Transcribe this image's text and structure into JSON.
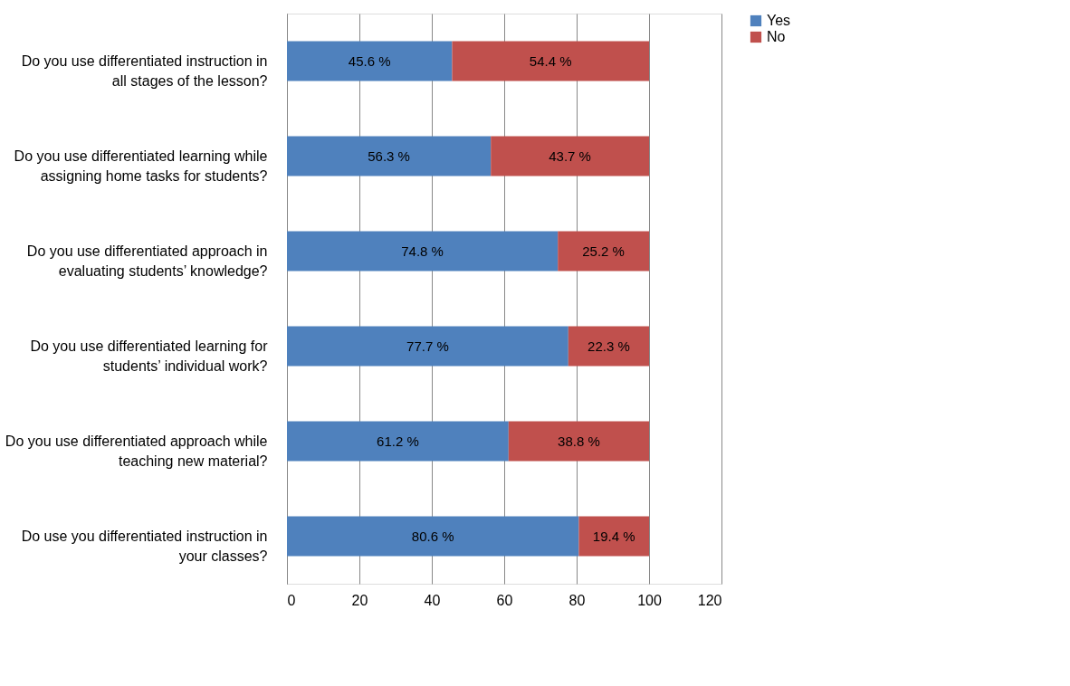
{
  "chart_data": {
    "type": "bar",
    "orientation": "horizontal",
    "stacked": true,
    "categories": [
      "Do you use differentiated instruction in all stages of the lesson?",
      "Do you use differentiated learning while assigning home tasks for students?",
      "Do you use differentiated approach in evaluating students’ knowledge?",
      "Do you use differentiated learning for students’ individual work?",
      "Do you use differentiated approach while teaching new material?",
      "Do use you differentiated instruction in your classes?"
    ],
    "series": [
      {
        "name": "Yes",
        "color": "#4f81bd",
        "values": [
          45.6,
          56.3,
          74.8,
          77.7,
          61.2,
          80.6
        ],
        "value_labels": [
          "45.6 %",
          "56.3 %",
          "74.8 %",
          "77.7 %",
          "61.2 %",
          "80.6 %"
        ]
      },
      {
        "name": "No",
        "color": "#c0504d",
        "values": [
          54.4,
          43.7,
          25.2,
          22.3,
          38.8,
          19.4
        ],
        "value_labels": [
          "54.4 %",
          "43.7 %",
          "25.2 %",
          "22.3 %",
          "38.8 %",
          "19.4 %"
        ]
      }
    ],
    "xlim": [
      0,
      120
    ],
    "xticks": [
      0,
      20,
      40,
      60,
      80,
      100,
      120
    ],
    "grid": "x",
    "legend": "right"
  }
}
